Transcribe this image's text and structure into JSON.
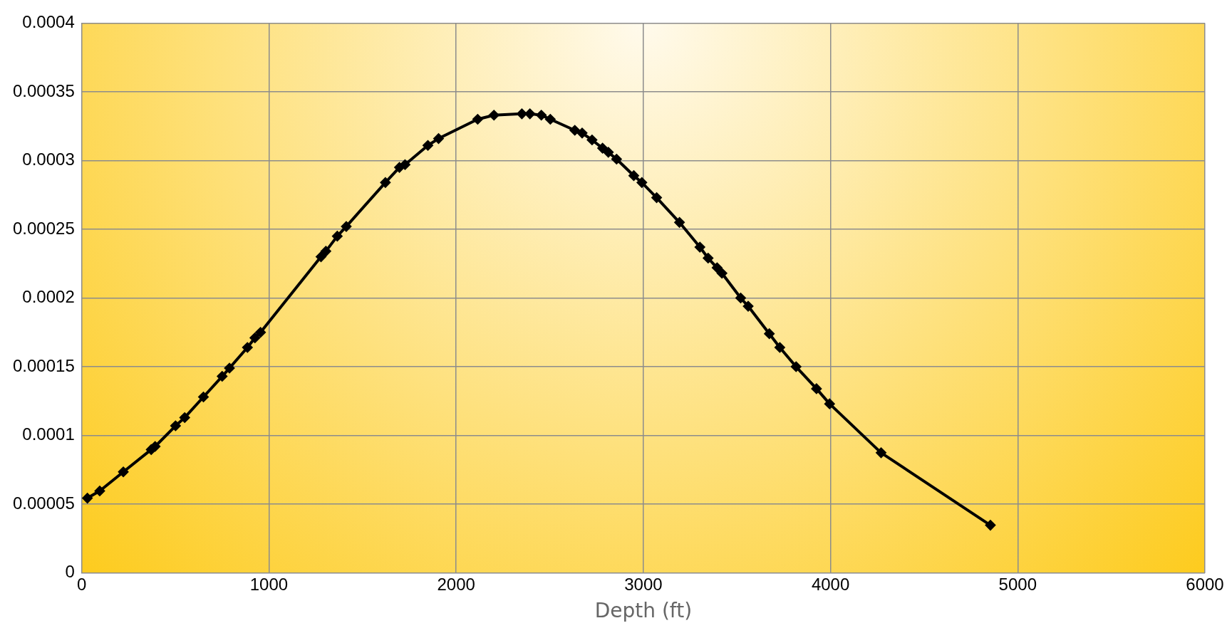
{
  "chart_data": {
    "type": "line",
    "xlabel": "Depth (ft)",
    "x": [
      30,
      96,
      222,
      371,
      392,
      501,
      550,
      650,
      750,
      789,
      885,
      925,
      955,
      1278,
      1304,
      1365,
      1413,
      1622,
      1697,
      1727,
      1849,
      1906,
      2115,
      2202,
      2351,
      2394,
      2455,
      2503,
      2634,
      2673,
      2726,
      2782,
      2813,
      2857,
      2949,
      2992,
      3071,
      3193,
      3302,
      3346,
      3394,
      3420,
      3520,
      3560,
      3673,
      3729,
      3816,
      3925,
      3995,
      4270,
      4854
    ],
    "series": [
      {
        "color": "#000000",
        "values": [
          5.44e-05,
          5.96e-05,
          7.35e-05,
          8.97e-05,
          9.2e-05,
          0.000107,
          0.000113,
          0.000128,
          0.000143,
          0.000149,
          0.000164,
          0.000171,
          0.000175,
          0.00023,
          0.000234,
          0.000245,
          0.000252,
          0.000284,
          0.000295,
          0.000297,
          0.000311,
          0.000316,
          0.00033,
          0.000333,
          0.000334,
          0.000334,
          0.000333,
          0.00033,
          0.000322,
          0.00032,
          0.000315,
          0.000309,
          0.000306,
          0.000301,
          0.000289,
          0.000284,
          0.000273,
          0.000255,
          0.000237,
          0.000229,
          0.000222,
          0.000218,
          0.0002,
          0.000194,
          0.000174,
          0.000164,
          0.00015,
          0.000134,
          0.000123,
          8.74e-05,
          3.47e-05
        ]
      }
    ],
    "xlim": [
      0,
      6000
    ],
    "xticks": [
      0,
      1000,
      2000,
      3000,
      4000,
      5000,
      6000
    ],
    "ylim": [
      0,
      0.0004
    ],
    "yticks": [
      0,
      {
        "value": 5e-05,
        "label": "0.00005"
      },
      0.0001,
      0.00015,
      0.0002,
      0.00025,
      0.0003,
      0.00035,
      0.0004
    ],
    "grid": true,
    "legend": false,
    "marker": "diamond",
    "line_style": "solid"
  }
}
